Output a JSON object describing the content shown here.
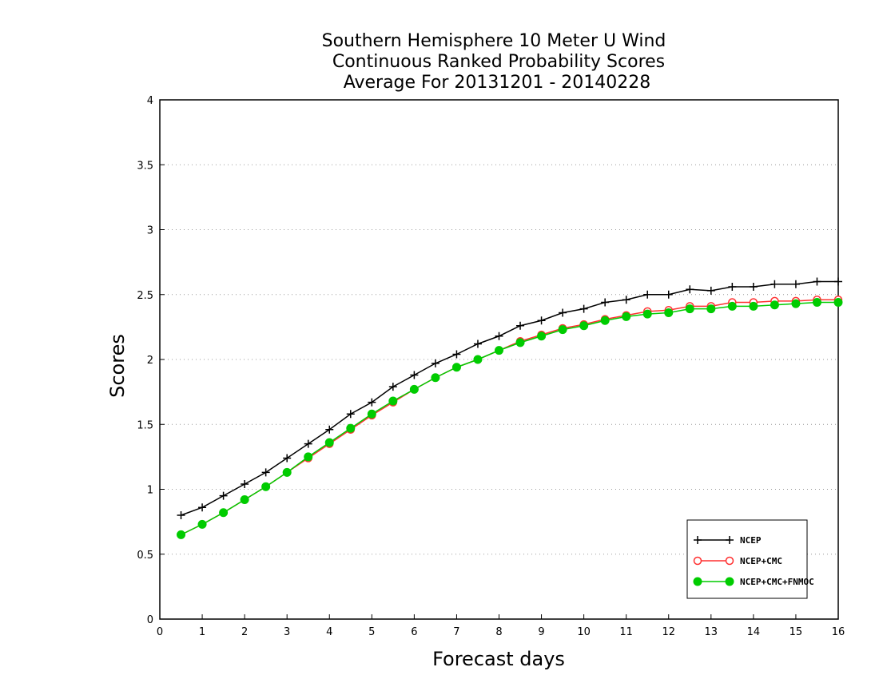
{
  "chart_data": {
    "type": "line",
    "title_lines": [
      "Southern Hemisphere 10 Meter U Wind",
      "Continuous Ranked Probability Scores",
      "Average For 20131201 - 20140228"
    ],
    "xlabel": "Forecast days",
    "ylabel": "Scores",
    "xlim": [
      0,
      16
    ],
    "ylim": [
      0,
      4
    ],
    "xticks": [
      0,
      1,
      2,
      3,
      4,
      5,
      6,
      7,
      8,
      9,
      10,
      11,
      12,
      13,
      14,
      15,
      16
    ],
    "xtick_labels": [
      "0",
      "1",
      "2",
      "3",
      "4",
      "5",
      "6",
      "7",
      "8",
      "9",
      "10",
      "11",
      "12",
      "13",
      "14",
      "15",
      "16"
    ],
    "yticks": [
      0,
      0.5,
      1,
      1.5,
      2,
      2.5,
      3,
      3.5,
      4
    ],
    "ytick_labels": [
      "0",
      "0.5",
      "1",
      "1.5",
      "2",
      "2.5",
      "3",
      "3.5",
      "4"
    ],
    "grid": "horizontal dotted",
    "legend_position": "bottom-right",
    "x": [
      0.5,
      1,
      1.5,
      2,
      2.5,
      3,
      3.5,
      4,
      4.5,
      5,
      5.5,
      6,
      6.5,
      7,
      7.5,
      8,
      8.5,
      9,
      9.5,
      10,
      10.5,
      11,
      11.5,
      12,
      12.5,
      13,
      13.5,
      14,
      14.5,
      15,
      15.5,
      16
    ],
    "series": [
      {
        "name": "NCEP",
        "color": "#000000",
        "marker": "plus",
        "values": [
          0.8,
          0.86,
          0.95,
          1.04,
          1.13,
          1.24,
          1.35,
          1.46,
          1.58,
          1.67,
          1.79,
          1.88,
          1.97,
          2.04,
          2.12,
          2.18,
          2.26,
          2.3,
          2.36,
          2.39,
          2.44,
          2.46,
          2.5,
          2.5,
          2.54,
          2.53,
          2.56,
          2.56,
          2.58,
          2.58,
          2.6,
          2.6
        ]
      },
      {
        "name": "NCEP+CMC",
        "color": "#ff3030",
        "marker": "open-circle",
        "values": [
          0.65,
          0.73,
          0.82,
          0.92,
          1.02,
          1.13,
          1.24,
          1.35,
          1.46,
          1.57,
          1.67,
          1.77,
          1.86,
          1.94,
          2.0,
          2.07,
          2.14,
          2.19,
          2.24,
          2.27,
          2.31,
          2.34,
          2.37,
          2.38,
          2.41,
          2.41,
          2.44,
          2.44,
          2.45,
          2.45,
          2.46,
          2.46
        ]
      },
      {
        "name": "NCEP+CMC+FNMOC",
        "color": "#00cc00",
        "marker": "filled-circle",
        "values": [
          0.65,
          0.73,
          0.82,
          0.92,
          1.02,
          1.13,
          1.25,
          1.36,
          1.47,
          1.58,
          1.68,
          1.77,
          1.86,
          1.94,
          2.0,
          2.07,
          2.13,
          2.18,
          2.23,
          2.26,
          2.3,
          2.33,
          2.35,
          2.36,
          2.39,
          2.39,
          2.41,
          2.41,
          2.42,
          2.43,
          2.44,
          2.44
        ]
      }
    ]
  }
}
